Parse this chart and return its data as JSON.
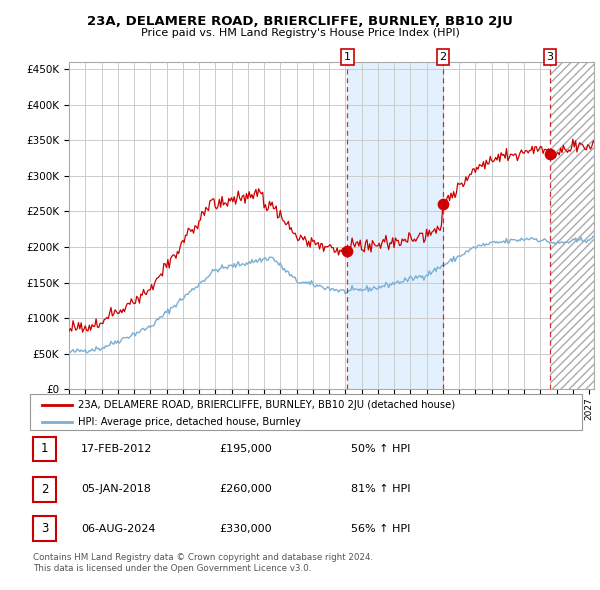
{
  "title": "23A, DELAMERE ROAD, BRIERCLIFFE, BURNLEY, BB10 2JU",
  "subtitle": "Price paid vs. HM Land Registry's House Price Index (HPI)",
  "legend_line1": "23A, DELAMERE ROAD, BRIERCLIFFE, BURNLEY, BB10 2JU (detached house)",
  "legend_line2": "HPI: Average price, detached house, Burnley",
  "transactions": [
    {
      "num": 1,
      "date": "17-FEB-2012",
      "date_num": 2012.12,
      "price": 195000,
      "pct": "50% ↑ HPI"
    },
    {
      "num": 2,
      "date": "05-JAN-2018",
      "date_num": 2018.01,
      "price": 260000,
      "pct": "81% ↑ HPI"
    },
    {
      "num": 3,
      "date": "06-AUG-2024",
      "date_num": 2024.6,
      "price": 330000,
      "pct": "56% ↑ HPI"
    }
  ],
  "note1": "Contains HM Land Registry data © Crown copyright and database right 2024.",
  "note2": "This data is licensed under the Open Government Licence v3.0.",
  "ylim": [
    0,
    460000
  ],
  "yticks": [
    0,
    50000,
    100000,
    150000,
    200000,
    250000,
    300000,
    350000,
    400000,
    450000
  ],
  "xlim_start": 1995,
  "xlim_end": 2027.3,
  "hatch_start": 2024.6,
  "shade_start": 2012.12,
  "shade_end": 2018.01,
  "red_color": "#cc0000",
  "blue_color": "#7bafd4",
  "background_color": "#ffffff",
  "grid_color": "#cccccc"
}
